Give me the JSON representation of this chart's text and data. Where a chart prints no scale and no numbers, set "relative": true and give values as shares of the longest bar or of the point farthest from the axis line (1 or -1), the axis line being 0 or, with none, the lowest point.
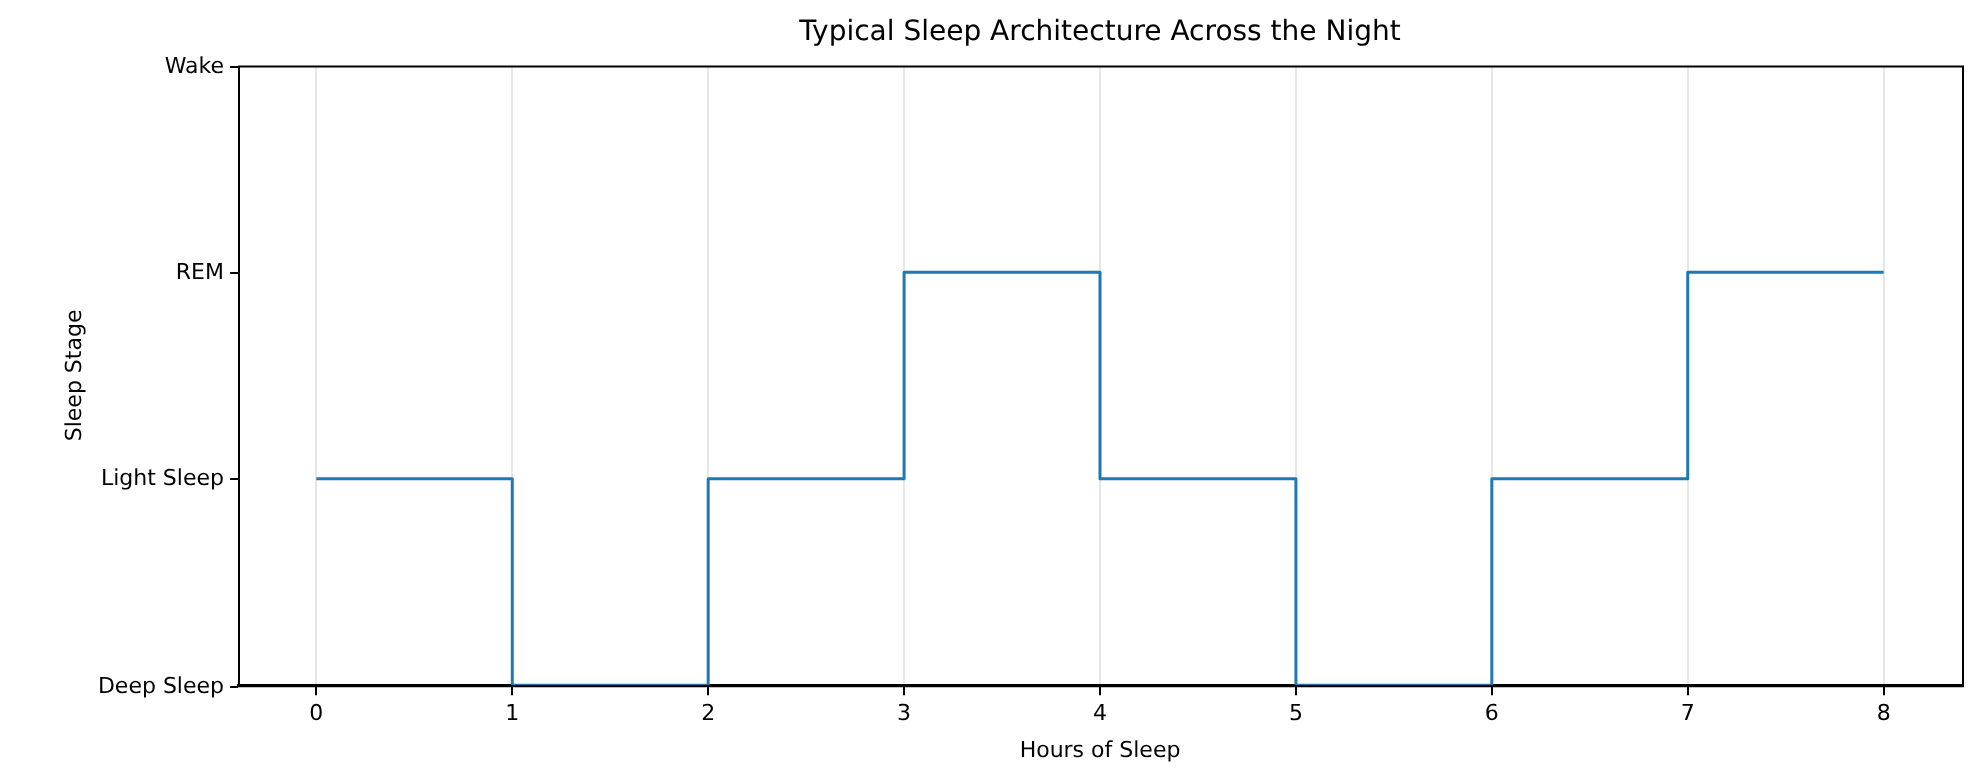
{
  "chart_data": {
    "type": "step",
    "title": "Typical Sleep Architecture Across the Night",
    "xlabel": "Hours of Sleep",
    "x": [
      0,
      1,
      2,
      3,
      4,
      5,
      6,
      7,
      8
    ],
    "series": [
      {
        "color": "#1f77b4",
        "values": [
          0.5,
          0,
          0.5,
          1,
          0.5,
          0,
          0.5,
          1,
          1
        ]
      }
    ],
    "relative": true,
    "xlim": [
      -0.4,
      8.4
    ],
    "xticks": [
      0,
      1,
      2,
      3,
      4,
      5,
      6,
      7,
      8
    ],
    "annotations": [
      "Wake",
      "REM",
      "Light Sleep",
      "Deep Sleep",
      "Sleep Stage"
    ],
    "grid": "x",
    "marker": "none",
    "line_style": "solid"
  }
}
